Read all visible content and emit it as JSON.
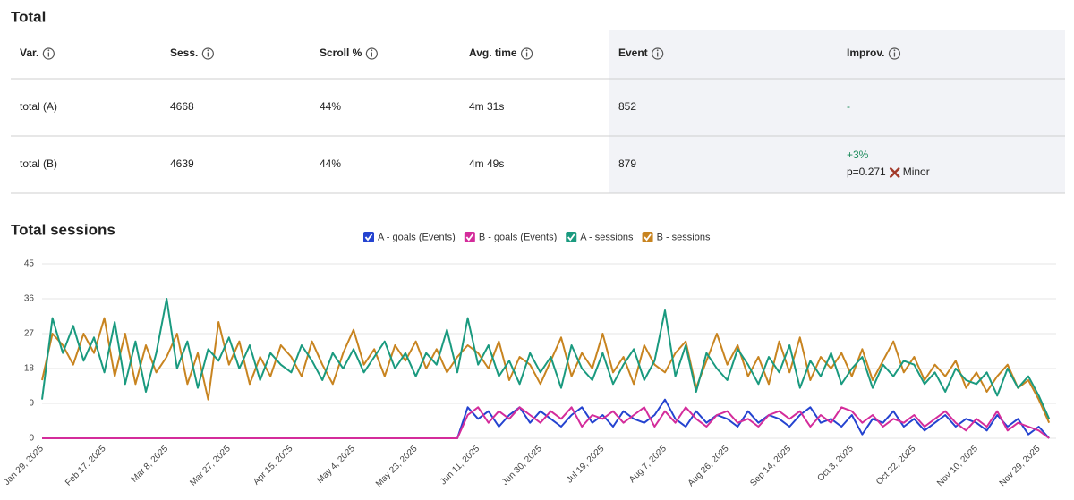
{
  "table": {
    "title": "Total",
    "headers": [
      "Var.",
      "Sess.",
      "Scroll %",
      "Avg. time",
      "Event",
      "Improv."
    ],
    "rows": [
      [
        "total (A)",
        "4668",
        "44%",
        "4m 31s",
        "852",
        "-"
      ],
      [
        "total (B)",
        "4639",
        "44%",
        "4m 49s",
        "879",
        {
          "change": "+3%",
          "p": "p=0.271",
          "verdict": "Minor"
        }
      ]
    ]
  },
  "chart_data": {
    "type": "line",
    "title": "Total sessions",
    "categories": [
      "Jan 29, 2025",
      null,
      null,
      null,
      null,
      null,
      "Feb 17, 2025",
      null,
      null,
      null,
      null,
      null,
      "Mar 8, 2025",
      null,
      null,
      null,
      null,
      null,
      "Mar 27, 2025",
      null,
      null,
      null,
      null,
      null,
      "Apr 15, 2025",
      null,
      null,
      null,
      null,
      null,
      "May 4, 2025",
      null,
      null,
      null,
      null,
      null,
      "May 23, 2025",
      null,
      null,
      null,
      null,
      null,
      "Jun 11, 2025",
      null,
      null,
      null,
      null,
      null,
      "Jun 30, 2025",
      null,
      null,
      null,
      null,
      null,
      "Jul 19, 2025",
      null,
      null,
      null,
      null,
      null,
      "Aug 7, 2025",
      null,
      null,
      null,
      null,
      null,
      "Aug 26, 2025",
      null,
      null,
      null,
      null,
      null,
      "Sep 14, 2025",
      null,
      null,
      null,
      null,
      null,
      "Oct 3, 2025",
      null,
      null,
      null,
      null,
      null,
      "Oct 22, 2025",
      null,
      null,
      null,
      null,
      null,
      "Nov 10, 2025",
      null,
      null,
      null,
      null,
      null,
      "Nov 29, 2025",
      null
    ],
    "series": [
      {
        "name": "A - goals (Events)",
        "color": "#2443d0",
        "values": [
          0,
          0,
          0,
          0,
          0,
          0,
          0,
          0,
          0,
          0,
          0,
          0,
          0,
          0,
          0,
          0,
          0,
          0,
          0,
          0,
          0,
          0,
          0,
          0,
          0,
          0,
          0,
          0,
          0,
          0,
          0,
          0,
          0,
          0,
          0,
          0,
          0,
          0,
          0,
          0,
          0,
          8,
          5,
          7,
          3,
          6,
          8,
          4,
          7,
          5,
          3,
          6,
          8,
          4,
          6,
          3,
          7,
          5,
          4,
          6,
          10,
          5,
          3,
          7,
          4,
          6,
          5,
          3,
          7,
          4,
          6,
          5,
          3,
          6,
          8,
          4,
          5,
          3,
          6,
          1,
          5,
          4,
          7,
          3,
          5,
          2,
          4,
          6,
          3,
          5,
          4,
          2,
          6,
          3,
          5,
          1,
          3,
          0
        ]
      },
      {
        "name": "B - goals (Events)",
        "color": "#d42c9b",
        "values": [
          0,
          0,
          0,
          0,
          0,
          0,
          0,
          0,
          0,
          0,
          0,
          0,
          0,
          0,
          0,
          0,
          0,
          0,
          0,
          0,
          0,
          0,
          0,
          0,
          0,
          0,
          0,
          0,
          0,
          0,
          0,
          0,
          0,
          0,
          0,
          0,
          0,
          0,
          0,
          0,
          0,
          6,
          8,
          4,
          7,
          5,
          8,
          6,
          4,
          7,
          5,
          8,
          3,
          6,
          5,
          7,
          4,
          6,
          8,
          3,
          7,
          4,
          8,
          5,
          3,
          6,
          7,
          4,
          5,
          3,
          6,
          7,
          5,
          7,
          3,
          6,
          4,
          8,
          7,
          4,
          6,
          3,
          5,
          4,
          6,
          3,
          5,
          7,
          4,
          2,
          5,
          3,
          7,
          2,
          4,
          3,
          2,
          0
        ]
      },
      {
        "name": "A - sessions",
        "color": "#1a9a7f",
        "values": [
          10,
          31,
          22,
          29,
          20,
          26,
          17,
          30,
          14,
          25,
          12,
          22,
          36,
          18,
          25,
          13,
          23,
          20,
          26,
          18,
          24,
          15,
          22,
          19,
          17,
          24,
          20,
          15,
          22,
          18,
          23,
          17,
          21,
          25,
          18,
          22,
          16,
          22,
          19,
          28,
          17,
          31,
          19,
          24,
          16,
          20,
          14,
          22,
          17,
          21,
          13,
          24,
          18,
          15,
          22,
          14,
          19,
          23,
          15,
          20,
          33,
          16,
          24,
          12,
          22,
          18,
          15,
          23,
          19,
          14,
          21,
          17,
          24,
          13,
          20,
          16,
          22,
          14,
          18,
          21,
          13,
          19,
          16,
          20,
          19,
          14,
          17,
          12,
          18,
          15,
          14,
          17,
          11,
          18,
          13,
          16,
          11,
          5
        ]
      },
      {
        "name": "B - sessions",
        "color": "#c88420",
        "values": [
          15,
          27,
          24,
          19,
          27,
          22,
          31,
          16,
          27,
          14,
          24,
          17,
          21,
          27,
          14,
          22,
          10,
          30,
          19,
          25,
          14,
          21,
          16,
          24,
          21,
          16,
          25,
          19,
          14,
          22,
          28,
          19,
          23,
          16,
          24,
          20,
          25,
          18,
          23,
          17,
          21,
          24,
          22,
          18,
          25,
          15,
          21,
          19,
          14,
          20,
          26,
          16,
          22,
          18,
          27,
          17,
          21,
          14,
          24,
          19,
          17,
          22,
          25,
          13,
          20,
          27,
          19,
          24,
          16,
          21,
          14,
          25,
          17,
          26,
          15,
          21,
          18,
          22,
          16,
          23,
          15,
          20,
          25,
          17,
          21,
          15,
          19,
          16,
          20,
          13,
          17,
          12,
          16,
          19,
          13,
          15,
          10,
          4
        ]
      }
    ],
    "ylim": [
      0,
      45
    ],
    "yticks": [
      0,
      9,
      18,
      27,
      36,
      45
    ],
    "grid": true
  }
}
